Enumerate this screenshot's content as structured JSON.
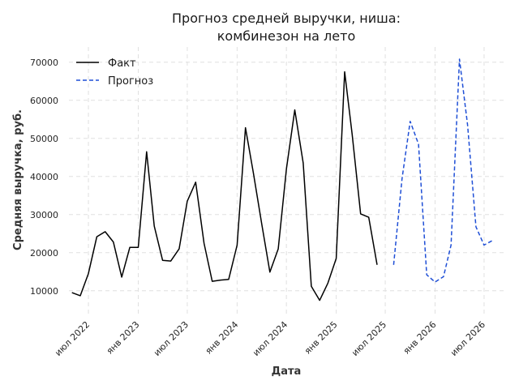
{
  "chart_data": {
    "type": "line",
    "title": "Прогноз средней выручки, ниша:\nкомбинезон на лето",
    "xlabel": "Дата",
    "ylabel": "Средняя выручка, руб.",
    "ylim": [
      4000,
      74000
    ],
    "yticks": [
      10000,
      20000,
      30000,
      40000,
      50000,
      60000,
      70000
    ],
    "xlim": [
      "2022-04-20",
      "2026-09-20"
    ],
    "xticks": [
      {
        "date": "2022-07-01",
        "label": "июл 2022"
      },
      {
        "date": "2023-01-01",
        "label": "янв 2023"
      },
      {
        "date": "2023-07-01",
        "label": "июл 2023"
      },
      {
        "date": "2024-01-01",
        "label": "янв 2024"
      },
      {
        "date": "2024-07-01",
        "label": "июл 2024"
      },
      {
        "date": "2025-01-01",
        "label": "янв 2025"
      },
      {
        "date": "2025-07-01",
        "label": "июл 2025"
      },
      {
        "date": "2026-01-01",
        "label": "янв 2026"
      },
      {
        "date": "2026-07-01",
        "label": "июл 2026"
      }
    ],
    "grid": true,
    "legend_position": "top-left",
    "series": [
      {
        "name": "Факт",
        "color": "#000000",
        "style": "solid",
        "x": [
          "2022-05-01",
          "2022-06-01",
          "2022-07-01",
          "2022-08-01",
          "2022-09-01",
          "2022-10-01",
          "2022-11-01",
          "2022-12-01",
          "2023-01-01",
          "2023-02-01",
          "2023-03-01",
          "2023-04-01",
          "2023-05-01",
          "2023-06-01",
          "2023-07-01",
          "2023-08-01",
          "2023-09-01",
          "2023-10-01",
          "2023-11-01",
          "2023-12-01",
          "2024-01-01",
          "2024-02-01",
          "2024-03-01",
          "2024-04-01",
          "2024-05-01",
          "2024-06-01",
          "2024-07-01",
          "2024-08-01",
          "2024-09-01",
          "2024-10-01",
          "2024-11-01",
          "2024-12-01",
          "2025-01-01",
          "2025-02-01",
          "2025-03-01",
          "2025-04-01",
          "2025-05-01",
          "2025-06-01",
          "2025-07-01",
          "2025-08-01"
        ],
        "values": [
          9500,
          8700,
          14500,
          24200,
          25500,
          22800,
          13600,
          21400,
          21400,
          46500,
          27000,
          18000,
          17800,
          21000,
          33500,
          38500,
          22500,
          12500,
          12800,
          13000,
          22000,
          52800,
          41000,
          27500,
          14900,
          21000,
          42000,
          57500,
          43500,
          11200,
          7500,
          12000,
          18500,
          67500,
          51000,
          30200,
          29300,
          16800,
          null,
          null
        ],
        "values_note": ""
      },
      {
        "name": "Прогноз",
        "color": "#1f4fd6",
        "style": "dashed",
        "x": [
          "2025-08-01",
          "2025-09-01",
          "2025-10-01",
          "2025-11-01",
          "2025-12-01",
          "2026-01-01",
          "2026-02-01",
          "2026-03-01",
          "2026-04-01",
          "2026-05-01",
          "2026-06-01",
          "2026-07-01",
          "2026-08-01"
        ],
        "values": [
          16800,
          39500,
          54500,
          48500,
          14200,
          12300,
          13700,
          22000,
          70800,
          53500,
          26800,
          22000,
          23200
        ]
      }
    ]
  }
}
